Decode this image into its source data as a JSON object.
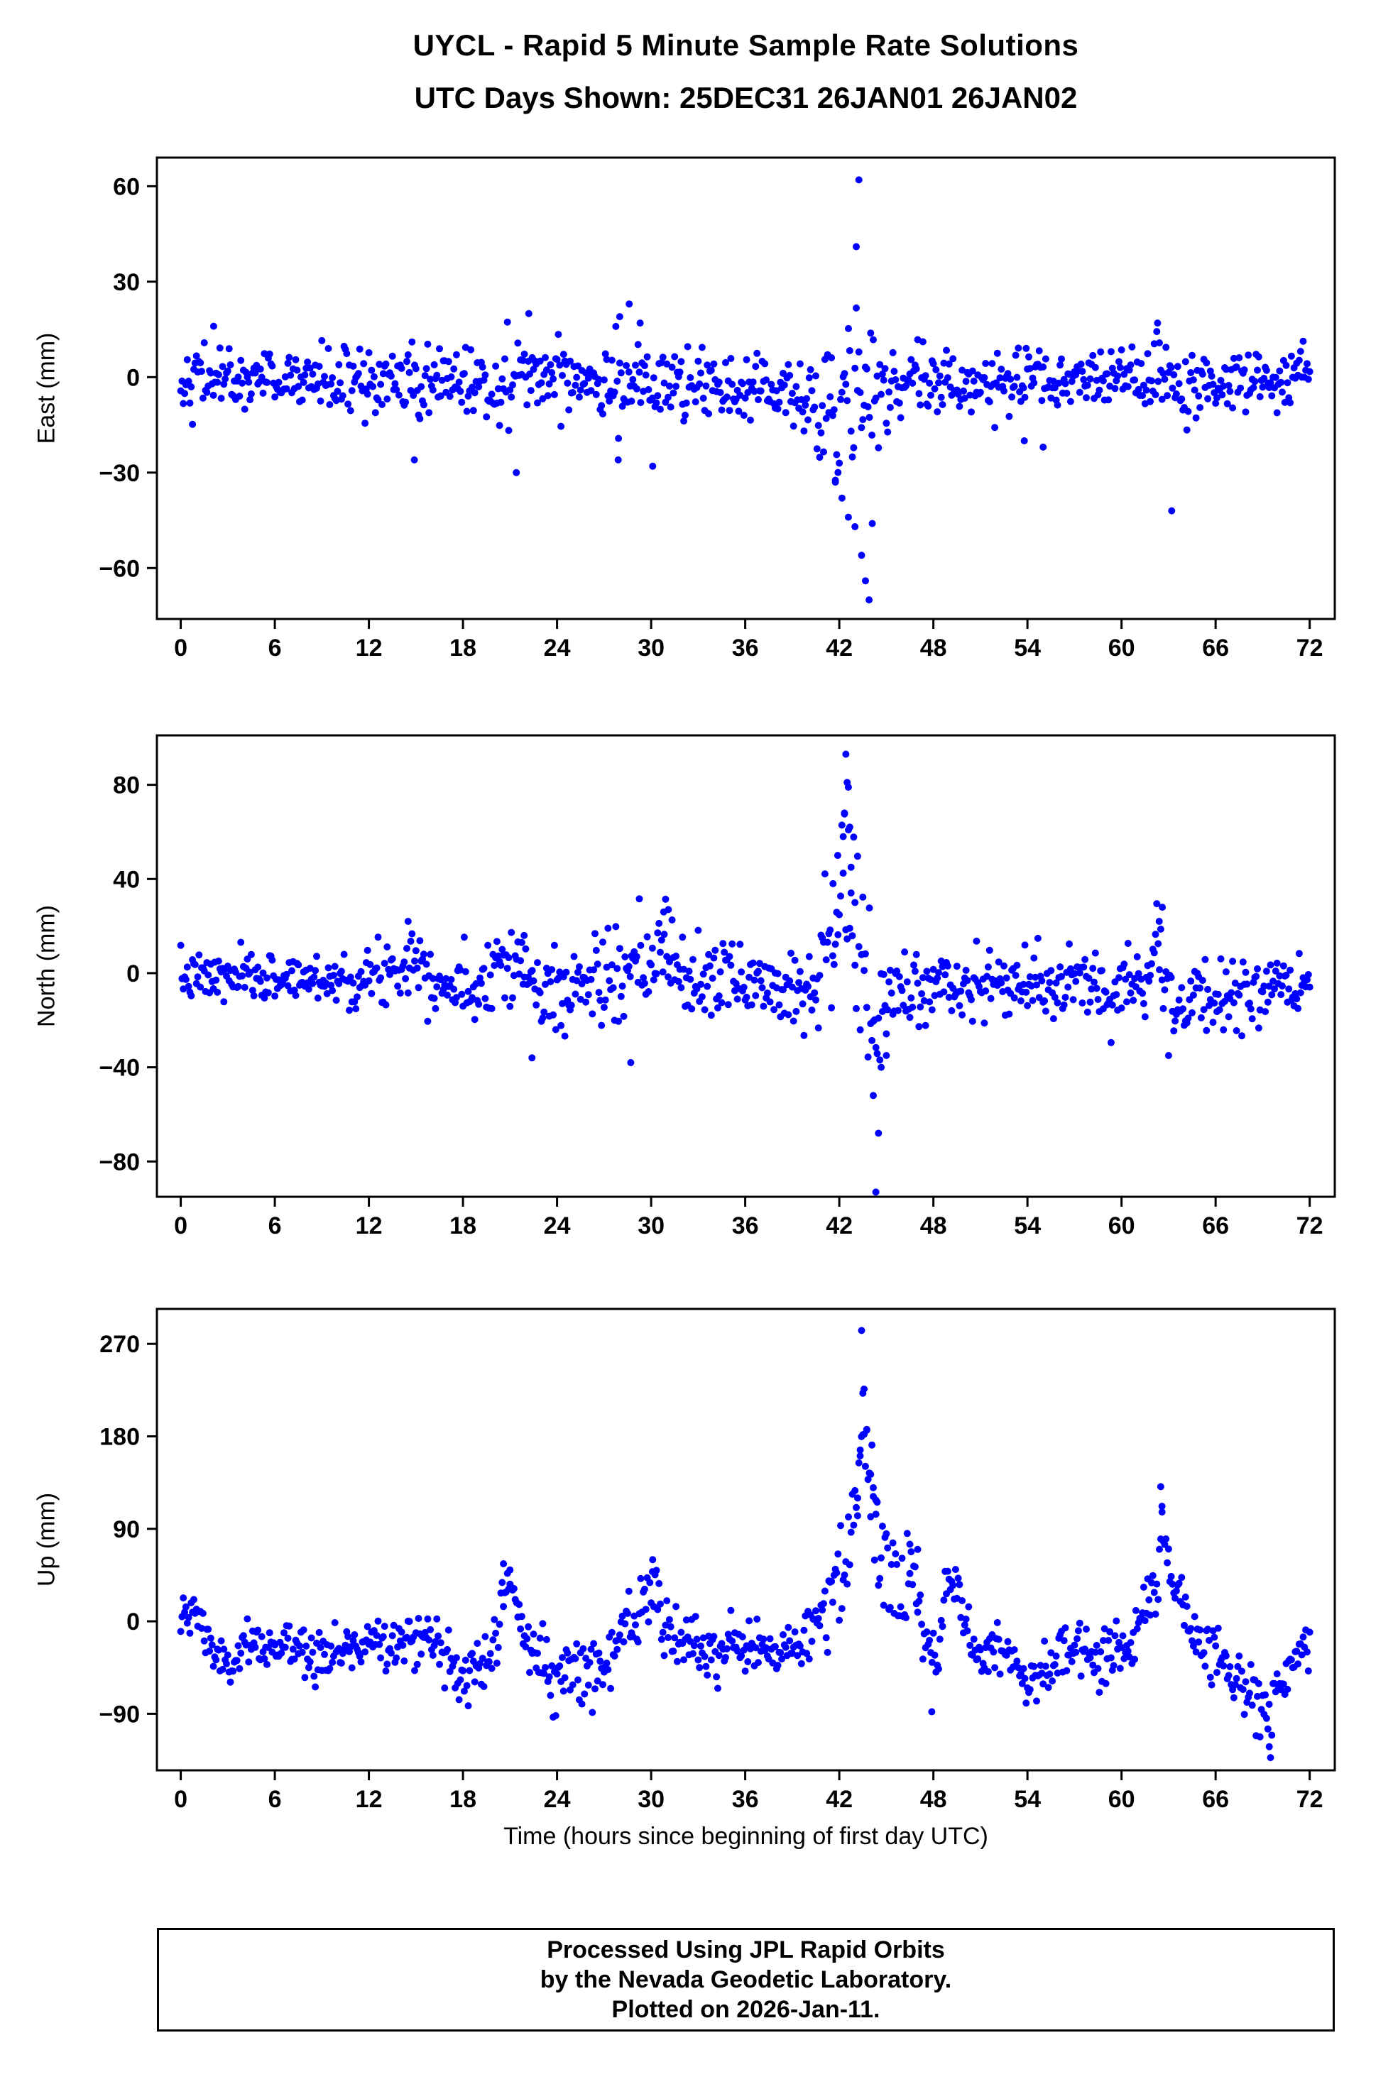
{
  "page": {
    "title": "UYCL - Rapid 5 Minute Sample Rate Solutions",
    "subtitle": "UTC Days Shown:  25DEC31 26JAN01 26JAN02"
  },
  "footer": {
    "lines": [
      "Processed Using JPL Rapid Orbits",
      "by the Nevada Geodetic Laboratory.",
      "Plotted on 2026-Jan-11."
    ]
  },
  "chart_meta": {
    "x_axis_label": "Time (hours since beginning of first day UTC)",
    "marker_color": "#0000ff",
    "xticks": [
      0,
      6,
      12,
      18,
      24,
      30,
      36,
      42,
      48,
      54,
      60,
      66,
      72
    ],
    "xlim": [
      -1.52,
      73.6
    ],
    "x_range": [
      0,
      72
    ],
    "sample_interval_hours": 0.0833333
  },
  "chart_data": [
    {
      "type": "scatter",
      "panel": "east",
      "ylabel": "East (mm)",
      "yticks": [
        -60,
        -30,
        0,
        30,
        60
      ],
      "ylim": [
        -76,
        69
      ],
      "seed": 42,
      "mean_control": [
        [
          0,
          0
        ],
        [
          10,
          -1
        ],
        [
          14,
          -3
        ],
        [
          16,
          -2
        ],
        [
          20,
          -1
        ],
        [
          24,
          1
        ],
        [
          27,
          1
        ],
        [
          30,
          -2
        ],
        [
          33,
          -4
        ],
        [
          36,
          -3
        ],
        [
          38,
          -4
        ],
        [
          40,
          -8
        ],
        [
          41,
          -12
        ],
        [
          42,
          -10
        ],
        [
          43,
          -6
        ],
        [
          44,
          -8
        ],
        [
          45,
          -4
        ],
        [
          47,
          -1
        ],
        [
          52,
          -2
        ],
        [
          56,
          -2
        ],
        [
          60,
          0
        ],
        [
          62,
          -2
        ],
        [
          64,
          -4
        ],
        [
          66,
          -4
        ],
        [
          68,
          0
        ],
        [
          72,
          0
        ]
      ],
      "sigma_control": [
        [
          0,
          4.5
        ],
        [
          6,
          4.5
        ],
        [
          13,
          6
        ],
        [
          16,
          6.5
        ],
        [
          19,
          5
        ],
        [
          21,
          7
        ],
        [
          23,
          6
        ],
        [
          26,
          7
        ],
        [
          28,
          8
        ],
        [
          30,
          5
        ],
        [
          34,
          4.5
        ],
        [
          38,
          5
        ],
        [
          40,
          8
        ],
        [
          42,
          14
        ],
        [
          43,
          15
        ],
        [
          44,
          13
        ],
        [
          45,
          8
        ],
        [
          46,
          6
        ],
        [
          50,
          4.5
        ],
        [
          54,
          5
        ],
        [
          58,
          4.5
        ],
        [
          61,
          5.5
        ],
        [
          63,
          6.5
        ],
        [
          66,
          5
        ],
        [
          70,
          5
        ],
        [
          72,
          4.5
        ]
      ],
      "outliers": [
        [
          43.25,
          62
        ],
        [
          43.08,
          41
        ],
        [
          42.58,
          -44
        ],
        [
          43.0,
          -47
        ],
        [
          43.42,
          -56
        ],
        [
          43.67,
          -64
        ],
        [
          43.9,
          -70
        ],
        [
          42.17,
          -38
        ],
        [
          44.1,
          -46
        ],
        [
          41.75,
          -33
        ],
        [
          63.2,
          -42
        ],
        [
          28.6,
          23
        ],
        [
          28.0,
          19
        ],
        [
          22.2,
          20
        ],
        [
          29.3,
          17
        ],
        [
          2.1,
          16
        ],
        [
          62.3,
          17
        ],
        [
          14.9,
          -26
        ],
        [
          21.4,
          -30
        ],
        [
          27.9,
          -26
        ],
        [
          30.1,
          -28
        ],
        [
          55.0,
          -22
        ],
        [
          53.8,
          -20
        ]
      ]
    },
    {
      "type": "scatter",
      "panel": "north",
      "ylabel": "North (mm)",
      "yticks": [
        -80,
        -40,
        0,
        40,
        80
      ],
      "ylim": [
        -95,
        101
      ],
      "seed": 7,
      "mean_control": [
        [
          0,
          -2
        ],
        [
          4,
          -2
        ],
        [
          8,
          -2
        ],
        [
          12,
          -3
        ],
        [
          14,
          5
        ],
        [
          15,
          8
        ],
        [
          16,
          0
        ],
        [
          17,
          -5
        ],
        [
          18,
          -8
        ],
        [
          19,
          -5
        ],
        [
          20,
          5
        ],
        [
          21,
          8
        ],
        [
          22,
          0
        ],
        [
          23,
          -10
        ],
        [
          24,
          -8
        ],
        [
          26,
          -5
        ],
        [
          27,
          0
        ],
        [
          28,
          -5
        ],
        [
          29,
          -3
        ],
        [
          30,
          5
        ],
        [
          31,
          8
        ],
        [
          32,
          0
        ],
        [
          33,
          -5
        ],
        [
          34,
          -2
        ],
        [
          36,
          -3
        ],
        [
          38,
          -5
        ],
        [
          40,
          -5
        ],
        [
          41,
          5
        ],
        [
          41.8,
          25
        ],
        [
          42.3,
          45
        ],
        [
          42.7,
          30
        ],
        [
          43.2,
          5
        ],
        [
          43.8,
          -15
        ],
        [
          44.3,
          -25
        ],
        [
          44.8,
          -15
        ],
        [
          45.5,
          -8
        ],
        [
          46,
          -8
        ],
        [
          48,
          -5
        ],
        [
          50,
          -6
        ],
        [
          52,
          -5
        ],
        [
          54,
          -5
        ],
        [
          56,
          -6
        ],
        [
          58,
          -5
        ],
        [
          60,
          -4
        ],
        [
          61.5,
          0
        ],
        [
          62.5,
          8
        ],
        [
          63.5,
          -12
        ],
        [
          64,
          -15
        ],
        [
          65,
          -12
        ],
        [
          66,
          -10
        ],
        [
          68,
          -8
        ],
        [
          70,
          -8
        ],
        [
          72,
          -8
        ]
      ],
      "sigma_control": [
        [
          0,
          5
        ],
        [
          6,
          5
        ],
        [
          12,
          6
        ],
        [
          14,
          8
        ],
        [
          16,
          7
        ],
        [
          18,
          7
        ],
        [
          20,
          8
        ],
        [
          22,
          9
        ],
        [
          23,
          10
        ],
        [
          25,
          9
        ],
        [
          27,
          10
        ],
        [
          29,
          10
        ],
        [
          31,
          11
        ],
        [
          33,
          9
        ],
        [
          35,
          8
        ],
        [
          37,
          7
        ],
        [
          39,
          8
        ],
        [
          41,
          14
        ],
        [
          42.5,
          20
        ],
        [
          44,
          18
        ],
        [
          45,
          12
        ],
        [
          46,
          9
        ],
        [
          48,
          7
        ],
        [
          52,
          7
        ],
        [
          56,
          7
        ],
        [
          60,
          7
        ],
        [
          62,
          10
        ],
        [
          63,
          11
        ],
        [
          65,
          8
        ],
        [
          68,
          7
        ],
        [
          72,
          6
        ]
      ],
      "outliers": [
        [
          42.42,
          93
        ],
        [
          42.5,
          81
        ],
        [
          42.58,
          79
        ],
        [
          42.33,
          68
        ],
        [
          42.67,
          62
        ],
        [
          42.25,
          58
        ],
        [
          41.9,
          50
        ],
        [
          42.75,
          45
        ],
        [
          44.33,
          -93
        ],
        [
          44.5,
          -68
        ],
        [
          44.17,
          -52
        ],
        [
          44.67,
          -40
        ],
        [
          45.0,
          -35
        ],
        [
          14.5,
          22
        ],
        [
          30.8,
          26
        ],
        [
          31.1,
          27
        ],
        [
          62.6,
          28
        ],
        [
          62.4,
          22
        ],
        [
          63.0,
          -35
        ],
        [
          22.4,
          -36
        ],
        [
          28.7,
          -38
        ],
        [
          21.9,
          16
        ],
        [
          41.6,
          38
        ],
        [
          43.0,
          30
        ]
      ]
    },
    {
      "type": "scatter",
      "panel": "up",
      "ylabel": "Up (mm)",
      "yticks": [
        -90,
        0,
        90,
        180,
        270
      ],
      "ylim": [
        -145,
        304
      ],
      "seed": 1234,
      "mean_control": [
        [
          0,
          -2
        ],
        [
          0.5,
          5
        ],
        [
          1,
          8
        ],
        [
          1.5,
          -5
        ],
        [
          2,
          -28
        ],
        [
          2.5,
          -40
        ],
        [
          3,
          -45
        ],
        [
          3.5,
          -38
        ],
        [
          4,
          -30
        ],
        [
          5,
          -25
        ],
        [
          6,
          -22
        ],
        [
          7,
          -28
        ],
        [
          8,
          -25
        ],
        [
          9,
          -30
        ],
        [
          10,
          -32
        ],
        [
          11,
          -25
        ],
        [
          12,
          -18
        ],
        [
          12.5,
          -10
        ],
        [
          13,
          -12
        ],
        [
          13.5,
          -20
        ],
        [
          14,
          -25
        ],
        [
          14.5,
          -18
        ],
        [
          15,
          -15
        ],
        [
          15.5,
          -12
        ],
        [
          16,
          -15
        ],
        [
          16.5,
          -25
        ],
        [
          17,
          -35
        ],
        [
          17.5,
          -45
        ],
        [
          18,
          -52
        ],
        [
          18.5,
          -55
        ],
        [
          19,
          -50
        ],
        [
          19.5,
          -35
        ],
        [
          20,
          -15
        ],
        [
          20.5,
          25
        ],
        [
          20.8,
          32
        ],
        [
          21.2,
          22
        ],
        [
          21.6,
          5
        ],
        [
          22,
          -12
        ],
        [
          22.5,
          -30
        ],
        [
          23,
          -42
        ],
        [
          23.5,
          -50
        ],
        [
          24,
          -55
        ],
        [
          24.5,
          -50
        ],
        [
          25,
          -42
        ],
        [
          25.5,
          -40
        ],
        [
          26,
          -38
        ],
        [
          26.5,
          -45
        ],
        [
          27,
          -50
        ],
        [
          27.5,
          -35
        ],
        [
          28,
          -18
        ],
        [
          28.5,
          -8
        ],
        [
          29,
          0
        ],
        [
          29.5,
          12
        ],
        [
          30,
          25
        ],
        [
          30.5,
          18
        ],
        [
          31,
          -8
        ],
        [
          31.5,
          -22
        ],
        [
          32,
          -30
        ],
        [
          33,
          -25
        ],
        [
          34,
          -30
        ],
        [
          35,
          -22
        ],
        [
          36,
          -30
        ],
        [
          37,
          -25
        ],
        [
          38,
          -32
        ],
        [
          39,
          -22
        ],
        [
          40,
          -12
        ],
        [
          41,
          5
        ],
        [
          41.5,
          15
        ],
        [
          42,
          35
        ],
        [
          42.5,
          60
        ],
        [
          43,
          95
        ],
        [
          43.3,
          140
        ],
        [
          43.6,
          190
        ],
        [
          43.8,
          150
        ],
        [
          44,
          120
        ],
        [
          44.3,
          90
        ],
        [
          44.7,
          65
        ],
        [
          45,
          48
        ],
        [
          45.5,
          38
        ],
        [
          46,
          32
        ],
        [
          46.5,
          48
        ],
        [
          47,
          25
        ],
        [
          47.5,
          -20
        ],
        [
          48,
          -45
        ],
        [
          48.3,
          -20
        ],
        [
          48.6,
          15
        ],
        [
          49,
          40
        ],
        [
          49.5,
          32
        ],
        [
          50,
          -5
        ],
        [
          50.5,
          -20
        ],
        [
          51,
          -30
        ],
        [
          51.5,
          -25
        ],
        [
          52,
          -20
        ],
        [
          52.5,
          -22
        ],
        [
          53,
          -28
        ],
        [
          53.5,
          -45
        ],
        [
          54,
          -60
        ],
        [
          54.5,
          -58
        ],
        [
          55,
          -50
        ],
        [
          55.5,
          -40
        ],
        [
          56,
          -32
        ],
        [
          56.5,
          -28
        ],
        [
          57,
          -25
        ],
        [
          57.5,
          -28
        ],
        [
          58,
          -30
        ],
        [
          58.5,
          -34
        ],
        [
          59,
          -36
        ],
        [
          59.5,
          -32
        ],
        [
          60,
          -26
        ],
        [
          60.5,
          -20
        ],
        [
          61,
          -10
        ],
        [
          61.5,
          5
        ],
        [
          62,
          35
        ],
        [
          62.3,
          70
        ],
        [
          62.6,
          85
        ],
        [
          63,
          55
        ],
        [
          63.5,
          22
        ],
        [
          64,
          2
        ],
        [
          64.5,
          -10
        ],
        [
          65,
          -18
        ],
        [
          65.5,
          -25
        ],
        [
          66,
          -30
        ],
        [
          66.5,
          -38
        ],
        [
          67,
          -48
        ],
        [
          67.5,
          -55
        ],
        [
          68,
          -58
        ],
        [
          68.5,
          -65
        ],
        [
          69,
          -78
        ],
        [
          69.3,
          -95
        ],
        [
          69.6,
          -105
        ],
        [
          70,
          -70
        ],
        [
          70.5,
          -45
        ],
        [
          71,
          -30
        ],
        [
          71.5,
          -22
        ],
        [
          72,
          -18
        ]
      ],
      "sigma_control": [
        [
          0,
          12
        ],
        [
          6,
          13
        ],
        [
          12,
          13
        ],
        [
          18,
          14
        ],
        [
          20,
          15
        ],
        [
          24,
          15
        ],
        [
          28,
          15
        ],
        [
          30,
          16
        ],
        [
          34,
          13
        ],
        [
          38,
          13
        ],
        [
          41,
          18
        ],
        [
          42.5,
          28
        ],
        [
          43.5,
          30
        ],
        [
          44.5,
          25
        ],
        [
          46,
          20
        ],
        [
          48,
          18
        ],
        [
          50,
          15
        ],
        [
          54,
          15
        ],
        [
          58,
          13
        ],
        [
          61,
          15
        ],
        [
          62.5,
          22
        ],
        [
          64,
          15
        ],
        [
          68,
          15
        ],
        [
          69.5,
          20
        ],
        [
          72,
          14
        ]
      ],
      "outliers": [
        [
          43.42,
          283
        ],
        [
          43.5,
          222
        ],
        [
          43.58,
          226
        ],
        [
          43.75,
          186
        ],
        [
          43.33,
          161
        ],
        [
          44.0,
          143
        ],
        [
          44.17,
          130
        ],
        [
          43.17,
          120
        ],
        [
          44.33,
          118
        ],
        [
          62.5,
          131
        ],
        [
          62.58,
          112
        ],
        [
          69.58,
          -150
        ],
        [
          69.42,
          -122
        ],
        [
          47.9,
          -88
        ],
        [
          30.1,
          60
        ],
        [
          20.58,
          56
        ],
        [
          21.0,
          50
        ],
        [
          46.5,
          75
        ],
        [
          47.0,
          70
        ]
      ]
    }
  ]
}
